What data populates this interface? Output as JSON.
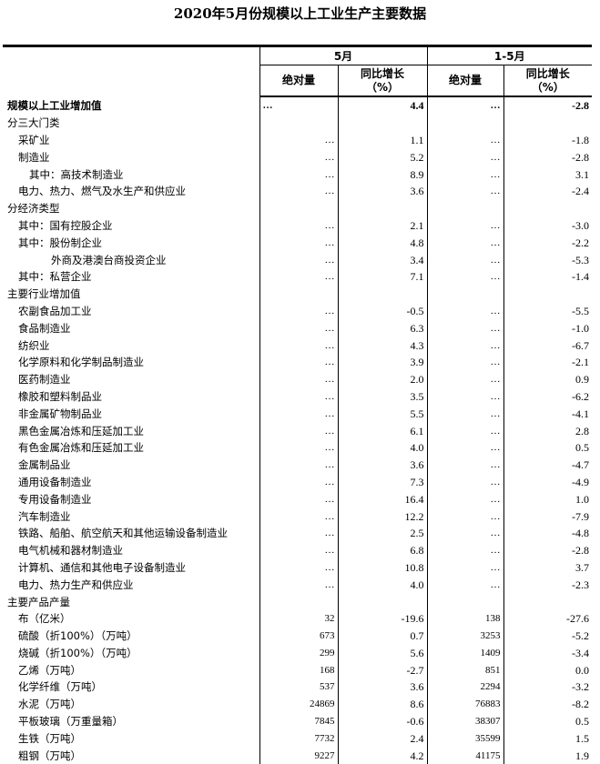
{
  "title": "2020年5月份规模以上工业生产主要数据",
  "header": {
    "group1": "5月",
    "group2": "1-5月",
    "abs": "绝对量",
    "yoy": "同比增长",
    "pct": "（%）"
  },
  "rows": [
    {
      "label": "规模以上工业增加值",
      "level": 0,
      "bold": true,
      "v": [
        "…",
        "4.4",
        "…",
        "-2.8"
      ]
    },
    {
      "label": "分三大门类",
      "level": 0,
      "v": [
        "",
        "",
        "",
        ""
      ]
    },
    {
      "label": "采矿业",
      "level": 1,
      "v": [
        "…",
        "1.1",
        "…",
        "-1.8"
      ]
    },
    {
      "label": "制造业",
      "level": 1,
      "v": [
        "…",
        "5.2",
        "…",
        "-2.8"
      ]
    },
    {
      "label": "其中：高技术制造业",
      "level": 2,
      "v": [
        "…",
        "8.9",
        "…",
        "3.1"
      ]
    },
    {
      "label": "电力、热力、燃气及水生产和供应业",
      "level": 1,
      "v": [
        "…",
        "3.6",
        "…",
        "-2.4"
      ]
    },
    {
      "label": "分经济类型",
      "level": 0,
      "v": [
        "",
        "",
        "",
        ""
      ]
    },
    {
      "label": "其中：国有控股企业",
      "level": 1,
      "v": [
        "…",
        "2.1",
        "…",
        "-3.0"
      ]
    },
    {
      "label": "其中：股份制企业",
      "level": 1,
      "v": [
        "…",
        "4.8",
        "…",
        "-2.2"
      ]
    },
    {
      "label": "外商及港澳台商投资企业",
      "level": 3,
      "v": [
        "…",
        "3.4",
        "…",
        "-5.3"
      ]
    },
    {
      "label": "其中：私营企业",
      "level": 1,
      "v": [
        "…",
        "7.1",
        "…",
        "-1.4"
      ]
    },
    {
      "label": "主要行业增加值",
      "level": 0,
      "v": [
        "",
        "",
        "",
        ""
      ]
    },
    {
      "label": "农副食品加工业",
      "level": 1,
      "v": [
        "…",
        "-0.5",
        "…",
        "-5.5"
      ]
    },
    {
      "label": "食品制造业",
      "level": 1,
      "v": [
        "…",
        "6.3",
        "…",
        "-1.0"
      ]
    },
    {
      "label": "纺织业",
      "level": 1,
      "v": [
        "…",
        "4.3",
        "…",
        "-6.7"
      ]
    },
    {
      "label": "化学原料和化学制品制造业",
      "level": 1,
      "v": [
        "…",
        "3.9",
        "…",
        "-2.1"
      ]
    },
    {
      "label": "医药制造业",
      "level": 1,
      "v": [
        "…",
        "2.0",
        "…",
        "0.9"
      ]
    },
    {
      "label": "橡胶和塑料制品业",
      "level": 1,
      "v": [
        "…",
        "3.5",
        "…",
        "-6.2"
      ]
    },
    {
      "label": "非金属矿物制品业",
      "level": 1,
      "v": [
        "…",
        "5.5",
        "…",
        "-4.1"
      ]
    },
    {
      "label": "黑色金属冶炼和压延加工业",
      "level": 1,
      "v": [
        "…",
        "6.1",
        "…",
        "2.8"
      ]
    },
    {
      "label": "有色金属冶炼和压延加工业",
      "level": 1,
      "v": [
        "…",
        "4.0",
        "…",
        "0.5"
      ]
    },
    {
      "label": "金属制品业",
      "level": 1,
      "v": [
        "…",
        "3.6",
        "…",
        "-4.7"
      ]
    },
    {
      "label": "通用设备制造业",
      "level": 1,
      "v": [
        "…",
        "7.3",
        "…",
        "-4.9"
      ]
    },
    {
      "label": "专用设备制造业",
      "level": 1,
      "v": [
        "…",
        "16.4",
        "…",
        "1.0"
      ]
    },
    {
      "label": "汽车制造业",
      "level": 1,
      "v": [
        "…",
        "12.2",
        "…",
        "-7.9"
      ]
    },
    {
      "label": "铁路、船舶、航空航天和其他运输设备制造业",
      "level": 1,
      "v": [
        "…",
        "2.5",
        "…",
        "-4.8"
      ]
    },
    {
      "label": "电气机械和器材制造业",
      "level": 1,
      "v": [
        "…",
        "6.8",
        "…",
        "-2.8"
      ]
    },
    {
      "label": "计算机、通信和其他电子设备制造业",
      "level": 1,
      "v": [
        "…",
        "10.8",
        "…",
        "3.7"
      ]
    },
    {
      "label": "电力、热力生产和供应业",
      "level": 1,
      "v": [
        "…",
        "4.0",
        "…",
        "-2.3"
      ]
    },
    {
      "label": "主要产品产量",
      "level": 0,
      "v": [
        "",
        "",
        "",
        ""
      ]
    },
    {
      "label": "布（亿米）",
      "level": 1,
      "v": [
        "32",
        "-19.6",
        "138",
        "-27.6"
      ]
    },
    {
      "label": "硫酸（折100%）（万吨）",
      "level": 1,
      "v": [
        "673",
        "0.7",
        "3253",
        "-5.2"
      ]
    },
    {
      "label": "烧碱（折100%）（万吨）",
      "level": 1,
      "v": [
        "299",
        "5.6",
        "1409",
        "-3.4"
      ]
    },
    {
      "label": "乙烯（万吨）",
      "level": 1,
      "v": [
        "168",
        "-2.7",
        "851",
        "0.0"
      ]
    },
    {
      "label": "化学纤维（万吨）",
      "level": 1,
      "v": [
        "537",
        "3.6",
        "2294",
        "-3.2"
      ]
    },
    {
      "label": "水泥（万吨）",
      "level": 1,
      "v": [
        "24869",
        "8.6",
        "76883",
        "-8.2"
      ]
    },
    {
      "label": "平板玻璃（万重量箱）",
      "level": 1,
      "v": [
        "7845",
        "-0.6",
        "38307",
        "0.5"
      ]
    },
    {
      "label": "生铁（万吨）",
      "level": 1,
      "v": [
        "7732",
        "2.4",
        "35599",
        "1.5"
      ]
    },
    {
      "label": "粗钢（万吨）",
      "level": 1,
      "v": [
        "9227",
        "4.2",
        "41175",
        "1.9"
      ]
    }
  ]
}
